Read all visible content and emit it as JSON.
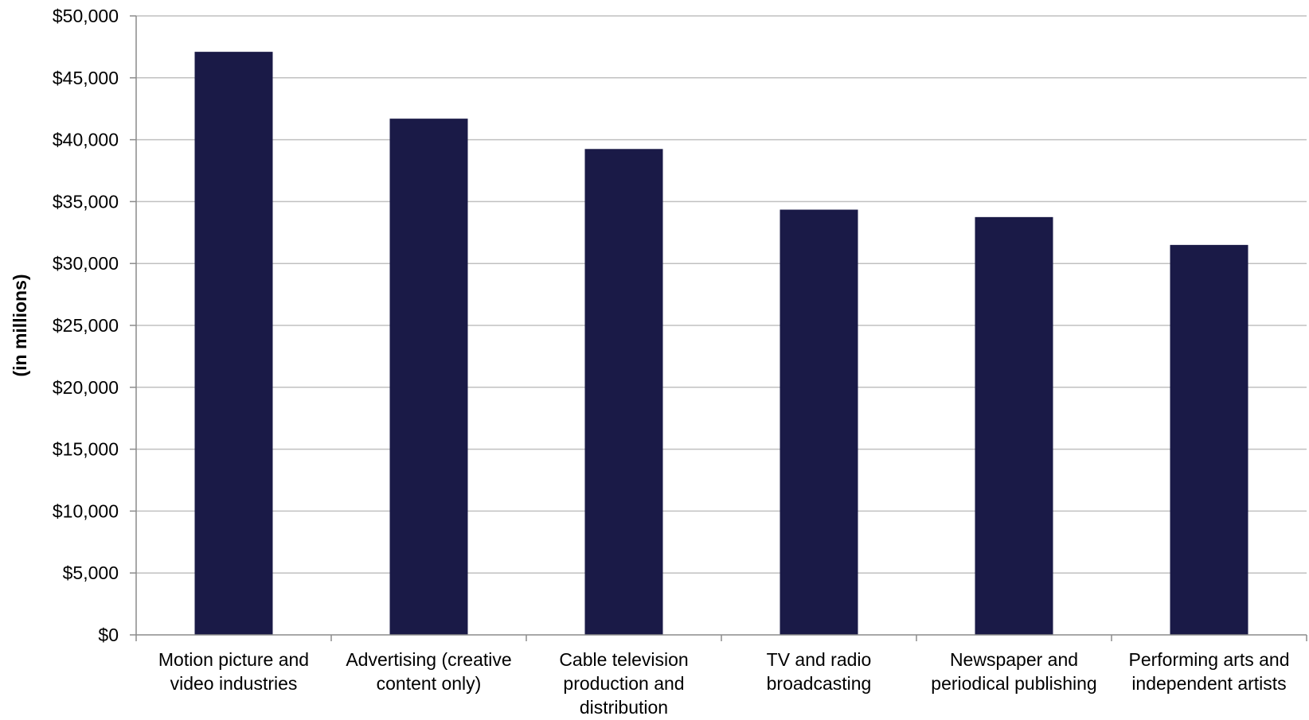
{
  "chart_data": {
    "type": "bar",
    "title": "",
    "xlabel": "",
    "ylabel": "(in millions)",
    "categories": [
      [
        "Motion picture and",
        "video industries"
      ],
      [
        "Advertising (creative",
        "content only)"
      ],
      [
        "Cable television",
        "production and",
        "distribution"
      ],
      [
        "TV and radio",
        "broadcasting"
      ],
      [
        "Newspaper and",
        "periodical publishing"
      ],
      [
        "Performing arts and",
        "independent artists"
      ]
    ],
    "values": [
      47100,
      41700,
      39250,
      34350,
      33750,
      31500
    ],
    "ylim": [
      0,
      50000
    ],
    "yticks": [
      0,
      5000,
      10000,
      15000,
      20000,
      25000,
      30000,
      35000,
      40000,
      45000,
      50000
    ],
    "ytick_labels": [
      "$0",
      "$5,000",
      "$10,000",
      "$15,000",
      "$20,000",
      "$25,000",
      "$30,000",
      "$35,000",
      "$40,000",
      "$45,000",
      "$50,000"
    ],
    "grid": true,
    "legend": "none",
    "colors": {
      "bar": "#1a1a47",
      "grid": "#c0c0c0",
      "axis": "#8c8c8c"
    }
  }
}
